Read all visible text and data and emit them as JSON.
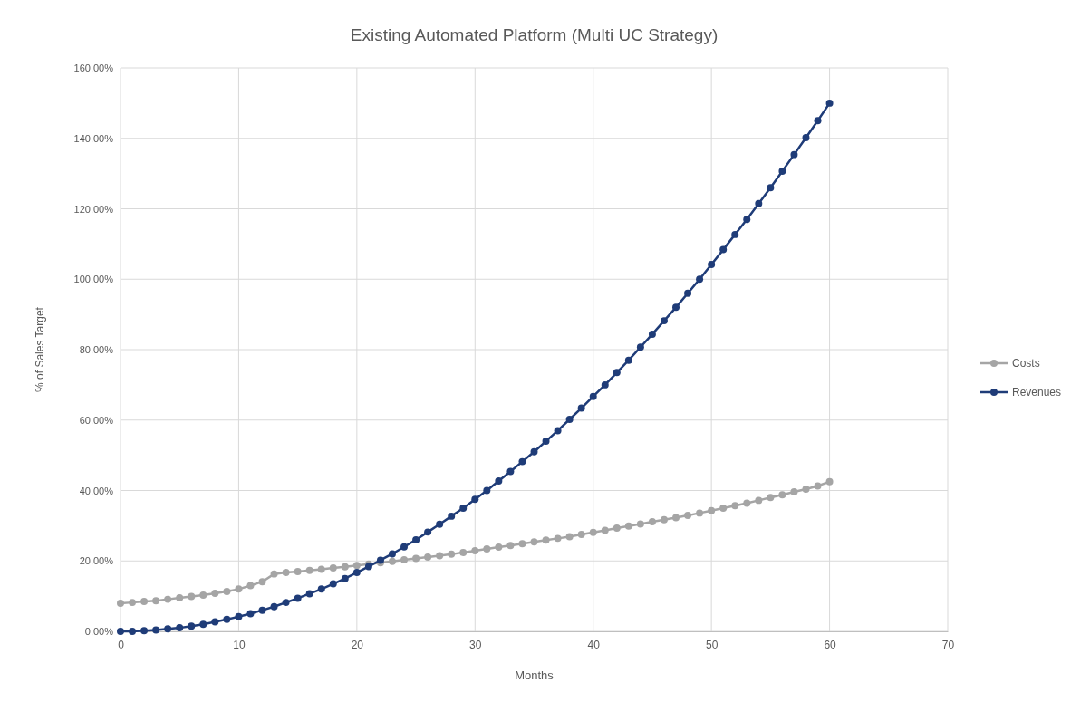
{
  "chart_data": {
    "type": "line",
    "title": "Existing Automated Platform (Multi UC Strategy)",
    "xlabel": "Months",
    "ylabel": "% of Sales Target",
    "x": [
      0,
      1,
      2,
      3,
      4,
      5,
      6,
      7,
      8,
      9,
      10,
      11,
      12,
      13,
      14,
      15,
      16,
      17,
      18,
      19,
      20,
      21,
      22,
      23,
      24,
      25,
      26,
      27,
      28,
      29,
      30,
      31,
      32,
      33,
      34,
      35,
      36,
      37,
      38,
      39,
      40,
      41,
      42,
      43,
      44,
      45,
      46,
      47,
      48,
      49,
      50,
      51,
      52,
      53,
      54,
      55,
      56,
      57,
      58,
      59,
      60
    ],
    "series": [
      {
        "name": "Costs",
        "color": "#a5a5a5",
        "values": [
          8.0,
          8.2,
          8.5,
          8.7,
          9.1,
          9.5,
          9.9,
          10.3,
          10.8,
          11.3,
          12.0,
          13.0,
          14.1,
          16.3,
          16.7,
          17.0,
          17.3,
          17.6,
          18.0,
          18.3,
          18.7,
          19.1,
          19.5,
          19.9,
          20.3,
          20.7,
          21.1,
          21.5,
          21.9,
          22.4,
          22.9,
          23.4,
          23.9,
          24.4,
          24.9,
          25.4,
          25.9,
          26.4,
          26.9,
          27.5,
          28.1,
          28.7,
          29.3,
          29.9,
          30.5,
          31.1,
          31.7,
          32.3,
          32.9,
          33.6,
          34.3,
          35.0,
          35.7,
          36.4,
          37.2,
          38.0,
          38.8,
          39.6,
          40.4,
          41.3,
          42.5
        ]
      },
      {
        "name": "Revenues",
        "color": "#1f3c78",
        "values": [
          0,
          0,
          0.2,
          0.4,
          0.7,
          1.0,
          1.5,
          2.0,
          2.7,
          3.4,
          4.2,
          5.0,
          6.0,
          7.0,
          8.2,
          9.4,
          10.7,
          12.0,
          13.5,
          15.0,
          16.7,
          18.4,
          20.2,
          22.0,
          24.0,
          26.0,
          28.2,
          30.4,
          32.7,
          35.0,
          37.5,
          40.0,
          42.7,
          45.4,
          48.2,
          51.0,
          54.0,
          57.0,
          60.2,
          63.4,
          66.7,
          70.0,
          73.5,
          77.0,
          80.7,
          84.4,
          88.2,
          92.0,
          96.0,
          100.0,
          104.2,
          108.4,
          112.7,
          117.0,
          121.5,
          126.0,
          130.7,
          135.4,
          140.2,
          145.0,
          150.0
        ]
      }
    ],
    "xlim": [
      0,
      70
    ],
    "xticks": [
      0,
      10,
      20,
      30,
      40,
      50,
      60,
      70
    ],
    "ylim": [
      0,
      160
    ],
    "yticks": [
      {
        "value": 0,
        "label": "0,00%"
      },
      {
        "value": 20,
        "label": "20,00%"
      },
      {
        "value": 40,
        "label": "40,00%"
      },
      {
        "value": 60,
        "label": "60,00%"
      },
      {
        "value": 80,
        "label": "80,00%"
      },
      {
        "value": 100,
        "label": "100,00%"
      },
      {
        "value": 120,
        "label": "120,00%"
      },
      {
        "value": 140,
        "label": "140,00%"
      },
      {
        "value": 160,
        "label": "160,00%"
      }
    ],
    "grid": true,
    "legend": "right",
    "marker": "circle",
    "line_style": "solid"
  }
}
